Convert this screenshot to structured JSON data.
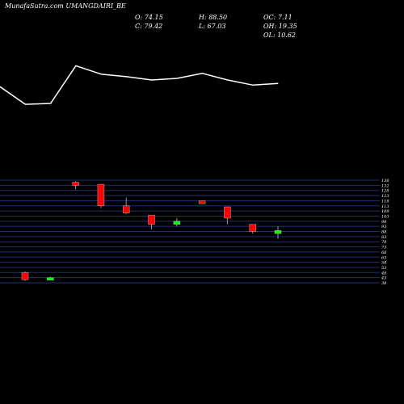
{
  "header": {
    "title": "MunafaSutra.com UMANGDAIRI_BE",
    "open": "O: 74.15",
    "close": "C: 79.42",
    "high": "H: 88.50",
    "low": "L: 67.03",
    "oc": "OC: 7.11",
    "oh": "OH: 19.35",
    "ol": "OL: 10.62"
  },
  "colors": {
    "background": "#000000",
    "up": "#00ff00",
    "down": "#ff0000",
    "grid": "#1f2f6f",
    "line": "#ffffff"
  },
  "chart_data": {
    "type": "candlestick",
    "y_ticks": [
      "136",
      "132",
      "128",
      "123",
      "118",
      "113",
      "109",
      "103",
      "98",
      "93",
      "88",
      "83",
      "78",
      "73",
      "68",
      "63",
      "58",
      "53",
      "48",
      "43",
      "38"
    ],
    "ylim": [
      38,
      138
    ],
    "candles": [
      {
        "open": 48,
        "close": 41,
        "high": 49,
        "low": 40
      },
      {
        "open": 42,
        "close": 43,
        "high": 44,
        "low": 41
      },
      {
        "open": 136,
        "close": 133,
        "high": 137,
        "low": 129
      },
      {
        "open": 134,
        "close": 113,
        "high": 134,
        "low": 111
      },
      {
        "open": 113,
        "close": 106,
        "high": 121,
        "low": 105
      },
      {
        "open": 104,
        "close": 95,
        "high": 104,
        "low": 90
      },
      {
        "open": 95,
        "close": 98,
        "high": 101,
        "low": 93
      },
      {
        "open": 118,
        "close": 115,
        "high": 118,
        "low": 115
      },
      {
        "open": 112,
        "close": 101,
        "high": 112,
        "low": 95
      },
      {
        "open": 95,
        "close": 88,
        "high": 95,
        "low": 86
      },
      {
        "open": 86,
        "close": 89,
        "high": 93,
        "low": 81
      }
    ],
    "line": [
      75,
      54,
      55,
      100,
      90,
      87,
      83,
      85,
      91,
      83,
      77,
      79
    ]
  }
}
